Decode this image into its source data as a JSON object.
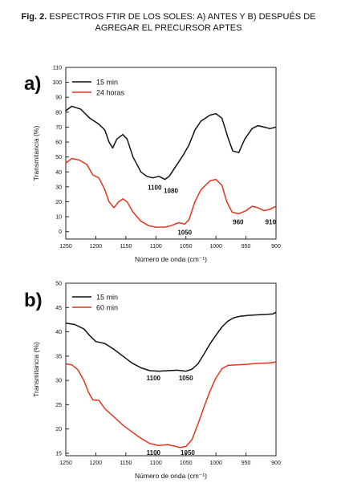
{
  "caption": {
    "label": "Fig. 2.",
    "text": "ESPECTROS FTIR DE LOS SOLES: A) ANTES Y B) DESPUÉS DE AGREGAR EL PRECURSOR APTES"
  },
  "colors": {
    "series1": "#111111",
    "series2": "#e0341c",
    "axis": "#222222"
  },
  "chart_data": [
    {
      "type": "line",
      "panel_label": "a)",
      "xlabel": "Número de onda (cm⁻¹)",
      "ylabel": "Transmitancia (%)",
      "xlim": [
        1250,
        900
      ],
      "ylim": [
        -5,
        110
      ],
      "x_ticks": [
        1250,
        1200,
        1150,
        1100,
        1050,
        1000,
        950,
        900
      ],
      "y_ticks": [
        0,
        10,
        20,
        30,
        40,
        50,
        60,
        70,
        80,
        90,
        100,
        110
      ],
      "series": [
        {
          "name": "15 min",
          "color": "#111111",
          "points": [
            [
              1250,
              81
            ],
            [
              1240,
              84
            ],
            [
              1225,
              82
            ],
            [
              1210,
              76
            ],
            [
              1195,
              72
            ],
            [
              1185,
              68
            ],
            [
              1178,
              60
            ],
            [
              1172,
              56
            ],
            [
              1165,
              62
            ],
            [
              1155,
              65
            ],
            [
              1148,
              62
            ],
            [
              1138,
              50
            ],
            [
              1125,
              40
            ],
            [
              1115,
              37
            ],
            [
              1105,
              36
            ],
            [
              1095,
              37
            ],
            [
              1085,
              35
            ],
            [
              1078,
              37
            ],
            [
              1068,
              43
            ],
            [
              1055,
              51
            ],
            [
              1045,
              58
            ],
            [
              1035,
              68
            ],
            [
              1025,
              74
            ],
            [
              1010,
              78
            ],
            [
              1000,
              79
            ],
            [
              990,
              76
            ],
            [
              980,
              63
            ],
            [
              972,
              54
            ],
            [
              962,
              53
            ],
            [
              952,
              62
            ],
            [
              940,
              69
            ],
            [
              930,
              71
            ],
            [
              920,
              70
            ],
            [
              910,
              69
            ],
            [
              900,
              70
            ]
          ]
        },
        {
          "name": "24 horas",
          "color": "#e0341c",
          "points": [
            [
              1250,
              46
            ],
            [
              1240,
              49
            ],
            [
              1228,
              48
            ],
            [
              1215,
              45
            ],
            [
              1205,
              38
            ],
            [
              1195,
              36
            ],
            [
              1185,
              28
            ],
            [
              1178,
              20
            ],
            [
              1170,
              16
            ],
            [
              1162,
              20
            ],
            [
              1155,
              22
            ],
            [
              1148,
              20
            ],
            [
              1138,
              13
            ],
            [
              1125,
              7
            ],
            [
              1112,
              4
            ],
            [
              1100,
              3
            ],
            [
              1085,
              3
            ],
            [
              1075,
              4
            ],
            [
              1062,
              6
            ],
            [
              1052,
              5
            ],
            [
              1045,
              8
            ],
            [
              1035,
              20
            ],
            [
              1025,
              28
            ],
            [
              1010,
              34
            ],
            [
              1000,
              35
            ],
            [
              990,
              31
            ],
            [
              982,
              20
            ],
            [
              973,
              13
            ],
            [
              962,
              12
            ],
            [
              950,
              14
            ],
            [
              940,
              17
            ],
            [
              930,
              16
            ],
            [
              920,
              14
            ],
            [
              910,
              15
            ],
            [
              900,
              17
            ]
          ]
        }
      ],
      "annotations": [
        {
          "text": "1100",
          "x": 1102,
          "y": 28
        },
        {
          "text": "1080",
          "x": 1075,
          "y": 26
        },
        {
          "text": "1050",
          "x": 1052,
          "y": -2
        },
        {
          "text": "960",
          "x": 963,
          "y": 5
        },
        {
          "text": "910",
          "x": 909,
          "y": 5
        }
      ]
    },
    {
      "type": "line",
      "panel_label": "b)",
      "xlabel": "Número de onda (cm⁻¹)",
      "ylabel": "Transmitancia (%)",
      "xlim": [
        1250,
        900
      ],
      "ylim": [
        14.5,
        50
      ],
      "x_ticks": [
        1250,
        1200,
        1150,
        1100,
        1050,
        1000,
        950,
        900
      ],
      "y_ticks": [
        15,
        20,
        25,
        30,
        35,
        40,
        45,
        50
      ],
      "series": [
        {
          "name": "15 min",
          "color": "#111111",
          "points": [
            [
              1250,
              41.8
            ],
            [
              1235,
              41.5
            ],
            [
              1220,
              40.6
            ],
            [
              1210,
              39.2
            ],
            [
              1200,
              38.0
            ],
            [
              1185,
              37.6
            ],
            [
              1170,
              36.4
            ],
            [
              1155,
              35.0
            ],
            [
              1140,
              33.6
            ],
            [
              1125,
              32.6
            ],
            [
              1110,
              32.0
            ],
            [
              1095,
              31.9
            ],
            [
              1080,
              32.0
            ],
            [
              1065,
              32.1
            ],
            [
              1050,
              31.9
            ],
            [
              1040,
              32.3
            ],
            [
              1030,
              33.4
            ],
            [
              1020,
              35.4
            ],
            [
              1010,
              37.5
            ],
            [
              1000,
              39.3
            ],
            [
              990,
              41.0
            ],
            [
              980,
              42.2
            ],
            [
              970,
              42.9
            ],
            [
              960,
              43.2
            ],
            [
              945,
              43.4
            ],
            [
              930,
              43.5
            ],
            [
              915,
              43.6
            ],
            [
              905,
              43.7
            ],
            [
              900,
              44.0
            ]
          ]
        },
        {
          "name": "60 min",
          "color": "#e0341c",
          "points": [
            [
              1250,
              33.4
            ],
            [
              1240,
              33.2
            ],
            [
              1230,
              32.2
            ],
            [
              1220,
              30.0
            ],
            [
              1212,
              27.5
            ],
            [
              1205,
              26.0
            ],
            [
              1195,
              25.9
            ],
            [
              1185,
              24.2
            ],
            [
              1170,
              22.5
            ],
            [
              1155,
              20.8
            ],
            [
              1140,
              19.4
            ],
            [
              1125,
              18.1
            ],
            [
              1110,
              17.0
            ],
            [
              1095,
              16.6
            ],
            [
              1080,
              16.8
            ],
            [
              1070,
              16.5
            ],
            [
              1060,
              16.2
            ],
            [
              1050,
              16.4
            ],
            [
              1040,
              17.8
            ],
            [
              1030,
              21.0
            ],
            [
              1020,
              24.5
            ],
            [
              1010,
              27.8
            ],
            [
              1000,
              30.5
            ],
            [
              990,
              32.4
            ],
            [
              980,
              33.1
            ],
            [
              965,
              33.2
            ],
            [
              950,
              33.3
            ],
            [
              930,
              33.5
            ],
            [
              910,
              33.6
            ],
            [
              900,
              33.8
            ]
          ]
        }
      ],
      "annotations": [
        {
          "text": "1100",
          "x": 1104,
          "y": 30.0
        },
        {
          "text": "1050",
          "x": 1050,
          "y": 30.0
        },
        {
          "text": "1100",
          "x": 1104,
          "y": 14.7
        },
        {
          "text": "1050",
          "x": 1047,
          "y": 14.7
        }
      ]
    }
  ]
}
